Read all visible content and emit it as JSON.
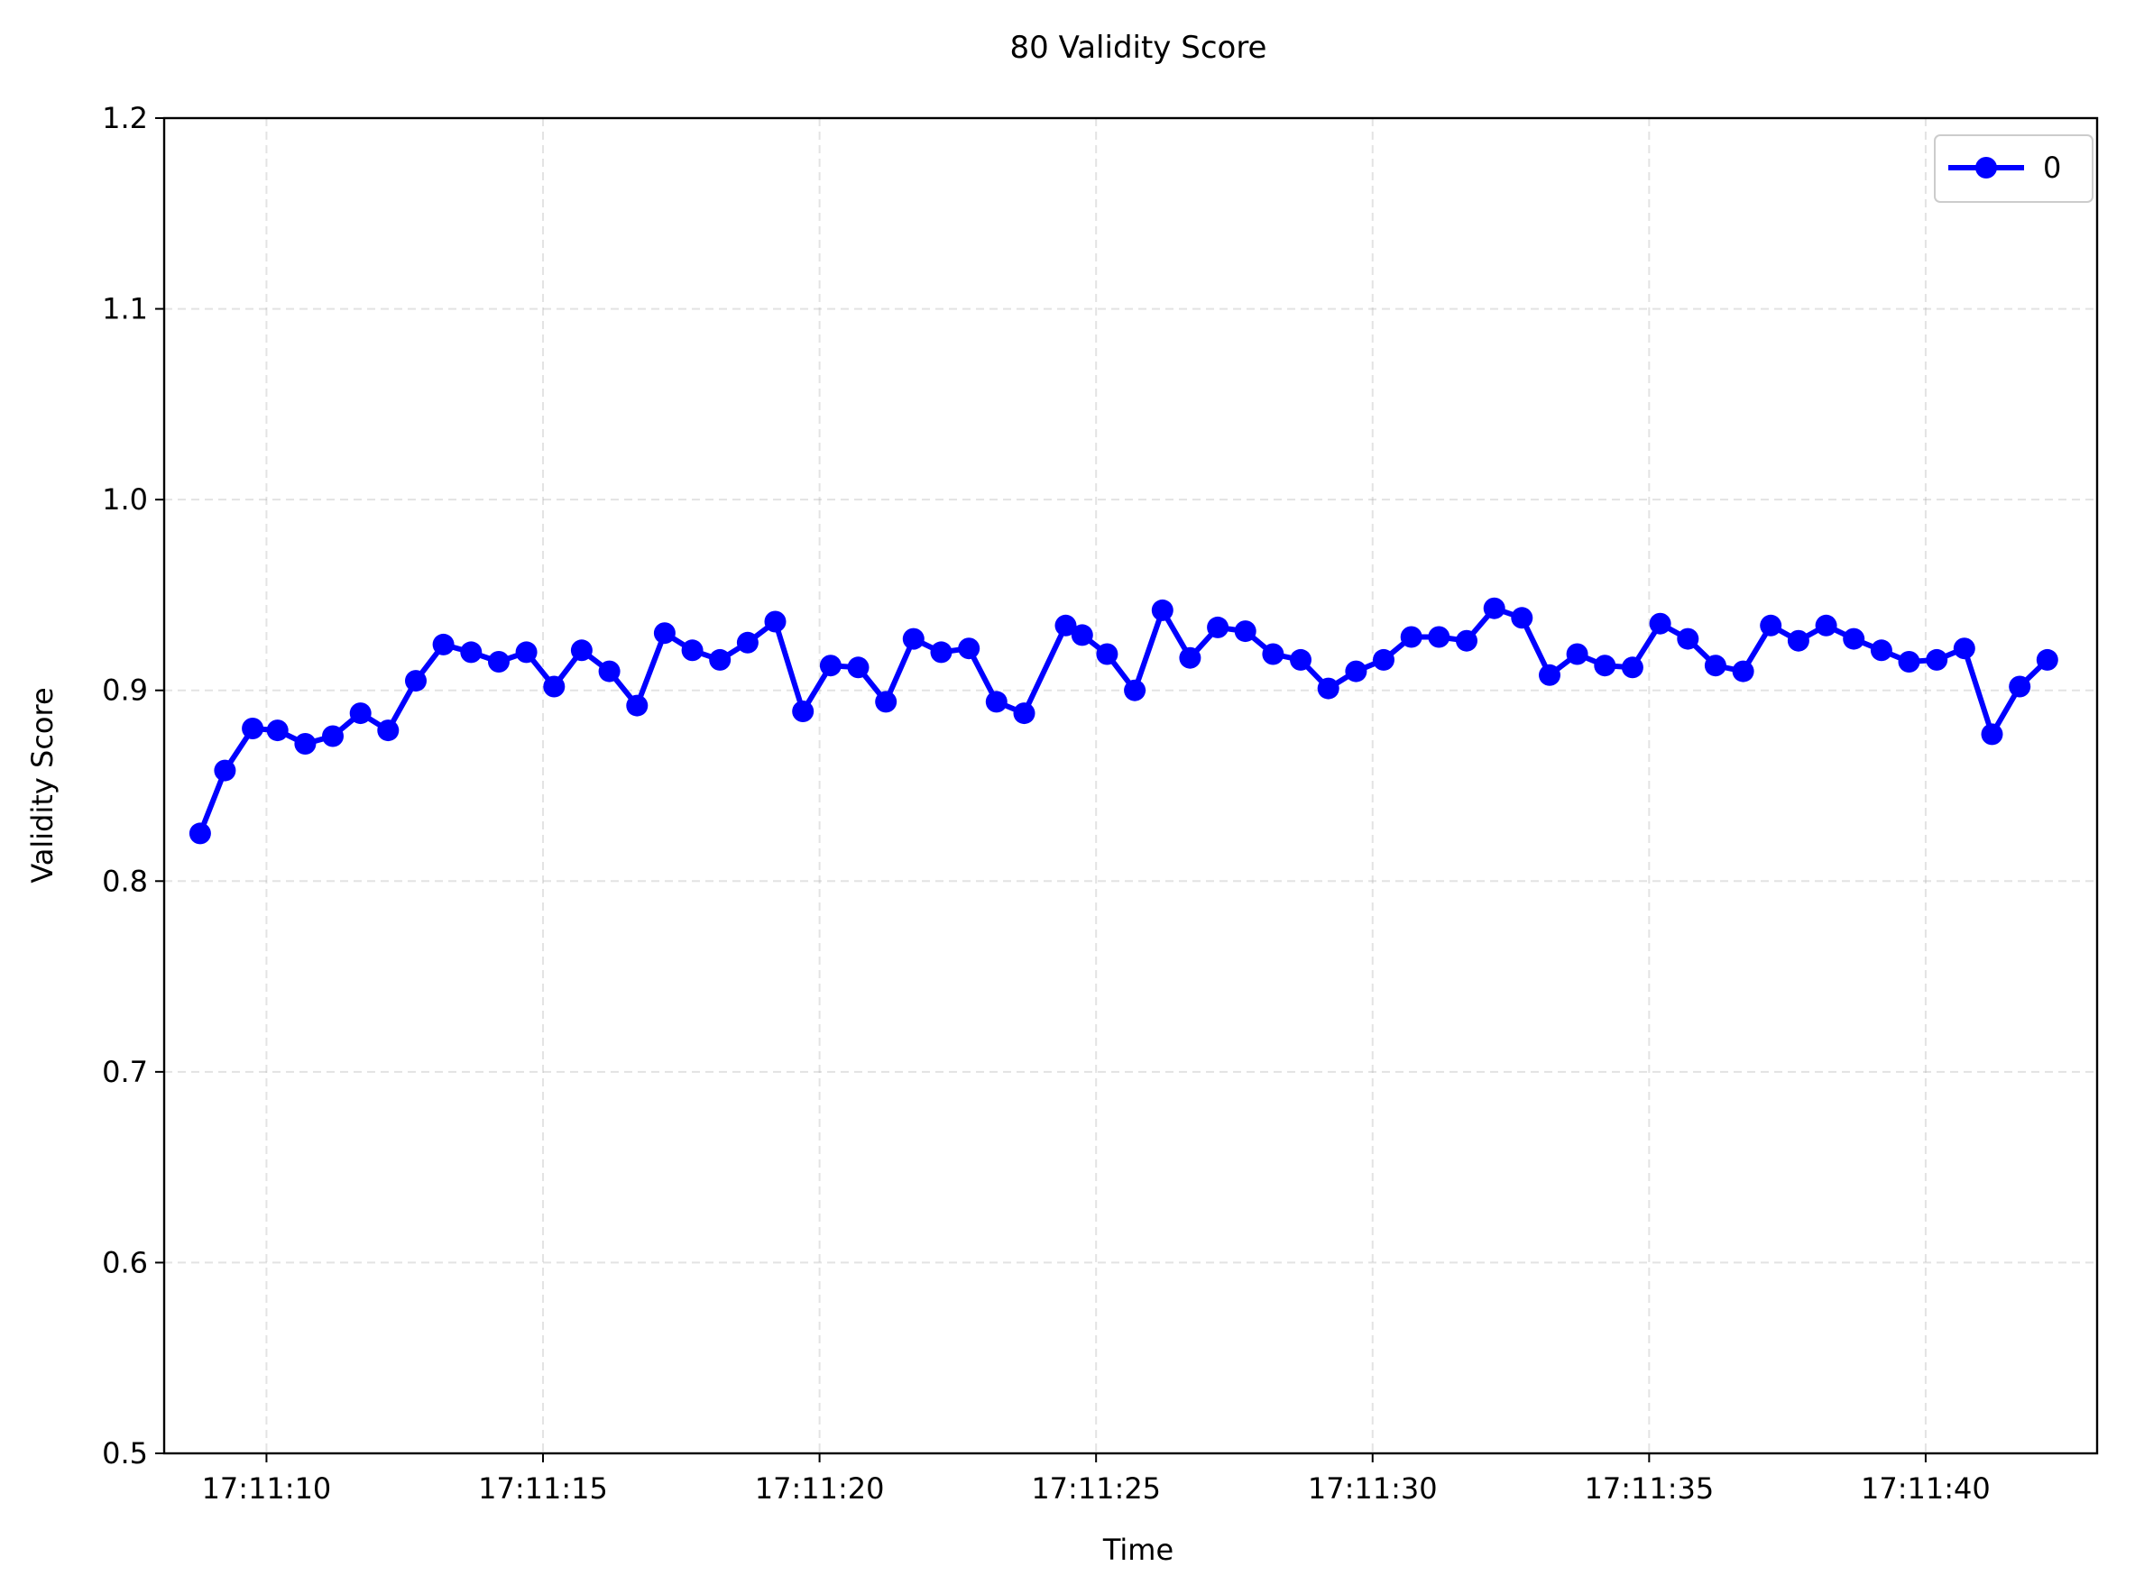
{
  "chart_data": {
    "type": "line",
    "title": "80 Validity Score",
    "xlabel": "Time",
    "ylabel": "Validity Score",
    "ylim": [
      0.5,
      1.2
    ],
    "xlim": [
      "17:11:08.15",
      "17:11:43.10"
    ],
    "yticks": [
      "0.5",
      "0.6",
      "0.7",
      "0.8",
      "0.9",
      "1.0",
      "1.1",
      "1.2"
    ],
    "xticks": [
      "17:11:10",
      "17:11:15",
      "17:11:20",
      "17:11:25",
      "17:11:30",
      "17:11:35",
      "17:11:40"
    ],
    "grid": true,
    "legend": "upper right",
    "line_color": "#0000ff",
    "series": [
      {
        "name": "0",
        "x": [
          "17:11:08.80",
          "17:11:09.25",
          "17:11:09.75",
          "17:11:10.20",
          "17:11:10.70",
          "17:11:11.20",
          "17:11:11.70",
          "17:11:12.20",
          "17:11:12.70",
          "17:11:13.20",
          "17:11:13.70",
          "17:11:14.20",
          "17:11:14.70",
          "17:11:15.20",
          "17:11:15.70",
          "17:11:16.20",
          "17:11:16.70",
          "17:11:17.20",
          "17:11:17.70",
          "17:11:18.20",
          "17:11:18.70",
          "17:11:19.20",
          "17:11:19.70",
          "17:11:20.20",
          "17:11:20.70",
          "17:11:21.20",
          "17:11:21.70",
          "17:11:22.20",
          "17:11:22.70",
          "17:11:23.20",
          "17:11:23.70",
          "17:11:24.45",
          "17:11:24.75",
          "17:11:25.20",
          "17:11:25.70",
          "17:11:26.20",
          "17:11:26.70",
          "17:11:27.20",
          "17:11:27.70",
          "17:11:28.20",
          "17:11:28.70",
          "17:11:29.20",
          "17:11:29.70",
          "17:11:30.20",
          "17:11:30.70",
          "17:11:31.20",
          "17:11:31.70",
          "17:11:32.20",
          "17:11:32.70",
          "17:11:33.20",
          "17:11:33.70",
          "17:11:34.20",
          "17:11:34.70",
          "17:11:35.20",
          "17:11:35.70",
          "17:11:36.20",
          "17:11:36.70",
          "17:11:37.20",
          "17:11:37.70",
          "17:11:38.20",
          "17:11:38.70",
          "17:11:39.20",
          "17:11:39.70",
          "17:11:40.20",
          "17:11:40.70",
          "17:11:41.20",
          "17:11:41.70",
          "17:11:42.20"
        ],
        "values": [
          0.825,
          0.858,
          0.88,
          0.879,
          0.872,
          0.876,
          0.888,
          0.879,
          0.905,
          0.924,
          0.92,
          0.915,
          0.92,
          0.902,
          0.921,
          0.91,
          0.892,
          0.93,
          0.921,
          0.916,
          0.925,
          0.936,
          0.889,
          0.913,
          0.912,
          0.894,
          0.927,
          0.92,
          0.922,
          0.894,
          0.888,
          0.934,
          0.929,
          0.919,
          0.9,
          0.942,
          0.917,
          0.933,
          0.931,
          0.919,
          0.916,
          0.901,
          0.91,
          0.916,
          0.928,
          0.928,
          0.926,
          0.943,
          0.938,
          0.908,
          0.919,
          0.913,
          0.912,
          0.935,
          0.927,
          0.913,
          0.91,
          0.934,
          0.926,
          0.934,
          0.927,
          0.921,
          0.915,
          0.916,
          0.922,
          0.877,
          0.902,
          0.916
        ]
      }
    ]
  }
}
